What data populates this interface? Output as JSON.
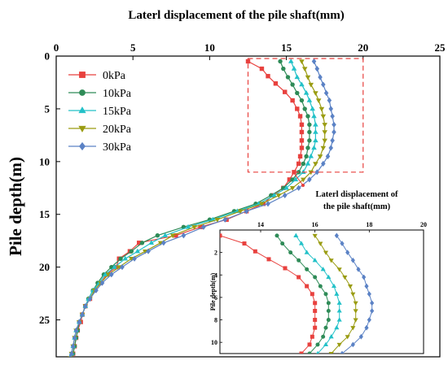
{
  "chart_data": [
    {
      "type": "line",
      "role": "main",
      "xlabel": "Laterl displacement of the pile shaft(mm)",
      "ylabel": "Pile depth(m)",
      "xlim": [
        0,
        25
      ],
      "ylim": [
        0,
        28.5
      ],
      "x_ticks": [
        0,
        5,
        10,
        15,
        20,
        25
      ],
      "y_ticks": [
        0,
        5,
        10,
        15,
        20,
        25
      ],
      "x_axis_position": "top",
      "y_inverted": true,
      "legend_position": "top-left",
      "series": [
        {
          "name": "0kPa",
          "color": "#e8413e",
          "marker": "square",
          "x": [
            12.5,
            13.4,
            13.8,
            14.3,
            14.9,
            15.4,
            15.7,
            15.9,
            16.0,
            16.0,
            16.0,
            16.0,
            15.9,
            15.8,
            15.5,
            15.2,
            14.8,
            14.1,
            13.5,
            12.4,
            11.1,
            9.4,
            7.8,
            5.4,
            4.8,
            4.1,
            3.9,
            3.3,
            2.9,
            2.5,
            2.2,
            1.9,
            1.7,
            1.6,
            1.4,
            1.3,
            1.2,
            1.1,
            1.0,
            1.0
          ],
          "y": [
            0.5,
            1.2,
            1.9,
            2.6,
            3.4,
            4.2,
            5.0,
            5.7,
            6.5,
            7.2,
            8.0,
            8.7,
            9.5,
            10.2,
            11.0,
            11.7,
            12.5,
            13.2,
            14.0,
            14.7,
            15.5,
            16.2,
            17.0,
            17.7,
            18.5,
            19.2,
            20.0,
            20.7,
            21.5,
            22.2,
            23.0,
            23.7,
            24.5,
            25.2,
            26.0,
            26.7,
            27.5,
            28.2,
            28.5,
            28.6
          ]
        },
        {
          "name": "10kPa",
          "color": "#2e8b57",
          "marker": "circle",
          "x": [
            14.6,
            14.8,
            15.1,
            15.4,
            15.7,
            16.0,
            16.2,
            16.4,
            16.5,
            16.5,
            16.5,
            16.4,
            16.3,
            16.1,
            15.8,
            15.4,
            14.8,
            14.0,
            13.0,
            11.6,
            10.0,
            8.3,
            6.6,
            5.6,
            4.9,
            4.2,
            3.6,
            3.1,
            2.7,
            2.4,
            2.1,
            1.9,
            1.7,
            1.5,
            1.4,
            1.3,
            1.2,
            1.1,
            1.0
          ],
          "y": [
            0.5,
            1.2,
            2.0,
            2.7,
            3.5,
            4.2,
            5.0,
            5.7,
            6.5,
            7.2,
            8.0,
            8.7,
            9.5,
            10.2,
            11.0,
            11.7,
            12.5,
            13.2,
            14.0,
            14.7,
            15.5,
            16.2,
            17.0,
            17.7,
            18.5,
            19.2,
            20.0,
            20.7,
            21.5,
            22.2,
            23.0,
            23.7,
            24.5,
            25.2,
            26.0,
            26.7,
            27.5,
            28.2,
            28.6
          ]
        },
        {
          "name": "15kPa",
          "color": "#23c1c8",
          "marker": "triangle",
          "x": [
            15.3,
            15.5,
            15.7,
            16.0,
            16.3,
            16.5,
            16.7,
            16.8,
            16.9,
            16.9,
            16.9,
            16.8,
            16.6,
            16.4,
            16.1,
            15.6,
            15.0,
            14.2,
            13.2,
            11.8,
            10.2,
            8.6,
            7.1,
            6.2,
            5.3,
            4.5,
            3.8,
            3.2,
            2.8,
            2.4,
            2.1,
            1.9,
            1.7,
            1.5,
            1.3,
            1.2,
            1.1,
            1.0,
            1.0
          ],
          "y": [
            0.5,
            1.2,
            2.0,
            2.7,
            3.5,
            4.2,
            5.0,
            5.7,
            6.5,
            7.2,
            8.0,
            8.7,
            9.5,
            10.2,
            11.0,
            11.7,
            12.5,
            13.2,
            14.0,
            14.7,
            15.5,
            16.2,
            17.0,
            17.7,
            18.5,
            19.2,
            20.0,
            20.7,
            21.5,
            22.2,
            23.0,
            23.7,
            24.5,
            25.2,
            26.0,
            26.7,
            27.5,
            28.2,
            28.6
          ]
        },
        {
          "name": "20kPa",
          "color": "#9a9c12",
          "marker": "triangle-down",
          "x": [
            16.0,
            16.2,
            16.4,
            16.6,
            16.9,
            17.1,
            17.3,
            17.4,
            17.5,
            17.5,
            17.5,
            17.4,
            17.2,
            16.9,
            16.6,
            16.1,
            15.4,
            14.5,
            13.4,
            12.0,
            10.5,
            9.0,
            7.6,
            6.8,
            5.8,
            4.9,
            4.1,
            3.4,
            2.9,
            2.5,
            2.2,
            1.9,
            1.7,
            1.5,
            1.3,
            1.2,
            1.1,
            1.0,
            0.9
          ],
          "y": [
            0.5,
            1.2,
            2.0,
            2.7,
            3.5,
            4.2,
            5.0,
            5.7,
            6.5,
            7.2,
            8.0,
            8.7,
            9.5,
            10.2,
            11.0,
            11.7,
            12.5,
            13.2,
            14.0,
            14.7,
            15.5,
            16.2,
            17.0,
            17.7,
            18.5,
            19.2,
            20.0,
            20.7,
            21.5,
            22.2,
            23.0,
            23.7,
            24.5,
            25.2,
            26.0,
            26.7,
            27.5,
            28.2,
            28.6
          ]
        },
        {
          "name": "30kPa",
          "color": "#5b82c5",
          "marker": "diamond",
          "x": [
            16.8,
            17.0,
            17.2,
            17.4,
            17.6,
            17.8,
            17.9,
            18.0,
            18.1,
            18.1,
            18.0,
            17.9,
            17.7,
            17.4,
            17.0,
            16.5,
            15.8,
            14.9,
            13.8,
            12.4,
            11.0,
            9.6,
            8.3,
            7.0,
            6.0,
            5.1,
            4.3,
            3.6,
            3.0,
            2.6,
            2.2,
            1.9,
            1.7,
            1.5,
            1.3,
            1.2,
            1.1,
            1.0,
            0.9
          ],
          "y": [
            0.5,
            1.2,
            2.0,
            2.7,
            3.5,
            4.2,
            5.0,
            5.7,
            6.5,
            7.2,
            8.0,
            8.7,
            9.5,
            10.2,
            11.0,
            11.7,
            12.5,
            13.2,
            14.0,
            14.7,
            15.5,
            16.2,
            17.0,
            17.7,
            18.5,
            19.2,
            20.0,
            20.7,
            21.5,
            22.2,
            23.0,
            23.7,
            24.5,
            25.2,
            26.0,
            26.7,
            27.5,
            28.2,
            28.6
          ]
        }
      ]
    },
    {
      "type": "line",
      "role": "inset",
      "xlabel": "Laterl displacement of the pile shaft(mm)",
      "ylabel": "Pile depth(m)",
      "xlim": [
        12.5,
        20
      ],
      "ylim": [
        0,
        11
      ],
      "x_ticks": [
        14,
        16,
        18,
        20
      ],
      "y_ticks": [
        2,
        4,
        6,
        8,
        10
      ],
      "x_axis_position": "top",
      "y_inverted": true,
      "zoom_box": {
        "xlim": [
          12.5,
          20
        ],
        "ylim": [
          0,
          11
        ],
        "color": "#e8413e"
      }
    }
  ]
}
